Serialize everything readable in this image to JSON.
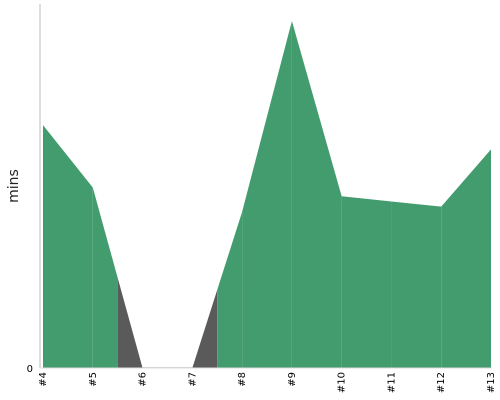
{
  "chart_data": {
    "type": "area",
    "ylabel": "mins",
    "categories": [
      "#4",
      "#5",
      "#6",
      "#7",
      "#8",
      "#9",
      "#10",
      "#11",
      "#12",
      "#13"
    ],
    "values": [
      70,
      52,
      0,
      0,
      45,
      100,
      49.5,
      48,
      46.5,
      63
    ],
    "y_tick_labels": [
      "0"
    ],
    "ylim": [
      0,
      100
    ],
    "colors": {
      "area": "#439c6e",
      "transition": "#5a5a5a",
      "axis": "#bbbbbb"
    },
    "grid": false,
    "legend": "none"
  }
}
